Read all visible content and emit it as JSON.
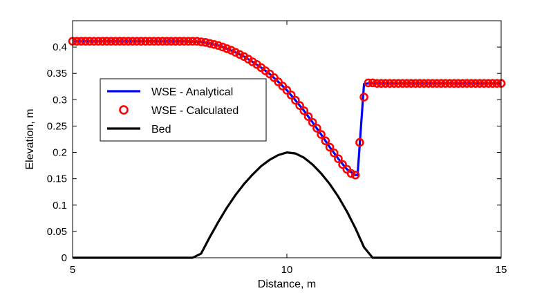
{
  "chart_data": {
    "type": "line",
    "xlabel": "Distance, m",
    "ylabel": "Elevation, m",
    "xlim": [
      5,
      15
    ],
    "ylim": [
      0,
      0.45
    ],
    "x_ticks": [
      5,
      10,
      15
    ],
    "y_ticks": [
      0,
      0.05,
      0.1,
      0.15,
      0.2,
      0.25,
      0.3,
      0.35,
      0.4
    ],
    "x_tick_labels": [
      "5",
      "10",
      "15"
    ],
    "y_tick_labels": [
      "0",
      "0.05",
      "0.1",
      "0.15",
      "0.2",
      "0.25",
      "0.3",
      "0.35",
      "0.4"
    ],
    "grid": false,
    "legend_position": "left-middle",
    "series": [
      {
        "name": "WSE - Analytical",
        "style": "line",
        "color": "#0000ff",
        "x": [
          5,
          5.5,
          6,
          6.5,
          7,
          7.5,
          8,
          8.2,
          8.4,
          8.6,
          8.8,
          9,
          9.2,
          9.4,
          9.6,
          9.8,
          10,
          10.2,
          10.4,
          10.6,
          10.8,
          11,
          11.2,
          11.4,
          11.6,
          11.65,
          11.8,
          11.9,
          12.2,
          13,
          14,
          15
        ],
        "y": [
          0.411,
          0.411,
          0.411,
          0.411,
          0.411,
          0.411,
          0.41,
          0.407,
          0.403,
          0.397,
          0.39,
          0.382,
          0.372,
          0.361,
          0.349,
          0.334,
          0.318,
          0.299,
          0.279,
          0.257,
          0.234,
          0.21,
          0.188,
          0.168,
          0.157,
          0.157,
          0.33,
          0.331,
          0.331,
          0.331,
          0.331,
          0.331
        ]
      },
      {
        "name": "WSE - Calculated",
        "style": "markers",
        "color": "#ff0000",
        "x": [
          5,
          5.1,
          5.2,
          5.3,
          5.4,
          5.5,
          5.6,
          5.7,
          5.8,
          5.9,
          6,
          6.1,
          6.2,
          6.3,
          6.4,
          6.5,
          6.6,
          6.7,
          6.8,
          6.9,
          7,
          7.1,
          7.2,
          7.3,
          7.4,
          7.5,
          7.6,
          7.7,
          7.8,
          7.9,
          8,
          8.1,
          8.2,
          8.3,
          8.4,
          8.5,
          8.6,
          8.7,
          8.8,
          8.9,
          9,
          9.1,
          9.2,
          9.3,
          9.4,
          9.5,
          9.6,
          9.7,
          9.8,
          9.9,
          10,
          10.1,
          10.2,
          10.3,
          10.4,
          10.5,
          10.6,
          10.7,
          10.8,
          10.9,
          11,
          11.1,
          11.2,
          11.3,
          11.4,
          11.5,
          11.6,
          11.7,
          11.8,
          11.9,
          12,
          12.1,
          12.2,
          12.3,
          12.4,
          12.5,
          12.6,
          12.7,
          12.8,
          12.9,
          13,
          13.1,
          13.2,
          13.3,
          13.4,
          13.5,
          13.6,
          13.7,
          13.8,
          13.9,
          14,
          14.1,
          14.2,
          14.3,
          14.4,
          14.5,
          14.6,
          14.7,
          14.8,
          14.9,
          15
        ],
        "y": [
          0.411,
          0.411,
          0.411,
          0.411,
          0.411,
          0.411,
          0.411,
          0.411,
          0.411,
          0.411,
          0.411,
          0.411,
          0.411,
          0.411,
          0.411,
          0.411,
          0.411,
          0.411,
          0.411,
          0.411,
          0.411,
          0.411,
          0.411,
          0.411,
          0.411,
          0.411,
          0.411,
          0.411,
          0.411,
          0.411,
          0.41,
          0.409,
          0.407,
          0.405,
          0.403,
          0.4,
          0.397,
          0.394,
          0.39,
          0.386,
          0.382,
          0.377,
          0.372,
          0.367,
          0.361,
          0.355,
          0.349,
          0.342,
          0.334,
          0.326,
          0.318,
          0.309,
          0.299,
          0.289,
          0.279,
          0.268,
          0.257,
          0.246,
          0.234,
          0.222,
          0.21,
          0.199,
          0.188,
          0.177,
          0.168,
          0.16,
          0.157,
          0.219,
          0.305,
          0.332,
          0.332,
          0.331,
          0.331,
          0.331,
          0.331,
          0.331,
          0.331,
          0.331,
          0.331,
          0.331,
          0.331,
          0.331,
          0.331,
          0.331,
          0.331,
          0.331,
          0.331,
          0.331,
          0.331,
          0.331,
          0.331,
          0.331,
          0.331,
          0.331,
          0.331,
          0.331,
          0.331,
          0.331,
          0.331,
          0.331,
          0.331
        ]
      },
      {
        "name": "Bed",
        "style": "line",
        "color": "#000000",
        "x": [
          5,
          6,
          7,
          7.8,
          8,
          8.2,
          8.4,
          8.6,
          8.8,
          9,
          9.2,
          9.4,
          9.6,
          9.8,
          10,
          10.2,
          10.4,
          10.6,
          10.8,
          11,
          11.2,
          11.4,
          11.6,
          11.8,
          12,
          12.2,
          13,
          14,
          15
        ],
        "y": [
          0,
          0,
          0,
          0,
          0.008,
          0.039,
          0.068,
          0.095,
          0.119,
          0.14,
          0.158,
          0.174,
          0.186,
          0.195,
          0.2,
          0.198,
          0.19,
          0.177,
          0.16,
          0.14,
          0.116,
          0.088,
          0.056,
          0.02,
          0,
          0,
          0,
          0,
          0
        ]
      }
    ]
  }
}
